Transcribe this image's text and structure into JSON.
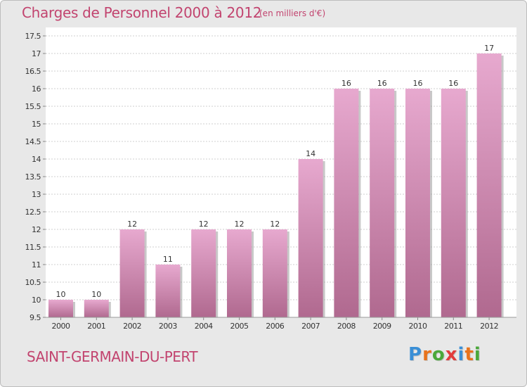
{
  "page": {
    "title": "Charges de Personnel 2000 à 2012",
    "subtitle": "(en milliers d'€)",
    "place": "SAINT-GERMAIN-DU-PERT",
    "brand": "Proxiti",
    "brand_letter_colors": [
      "#3a8fd6",
      "#e8731c",
      "#4aa83a",
      "#e23c3c",
      "#3a8fd6",
      "#e8731c",
      "#4aa83a"
    ]
  },
  "colors": {
    "bar_top": "#e7a9cf",
    "bar_bottom": "#b0698f",
    "bar_shadow": "#9a9a9a",
    "text": "#c2446f",
    "axis_text": "#333333",
    "grid": "#cfcfcf"
  },
  "chart_data": {
    "type": "bar",
    "title": "Charges de Personnel 2000 à 2012",
    "subtitle": "(en milliers d'€)",
    "categories": [
      "2000",
      "2001",
      "2002",
      "2003",
      "2004",
      "2005",
      "2006",
      "2007",
      "2008",
      "2009",
      "2010",
      "2011",
      "2012"
    ],
    "values": [
      10,
      10,
      12,
      11,
      12,
      12,
      12,
      14,
      16,
      16,
      16,
      16,
      17
    ],
    "data_labels": [
      "10",
      "10",
      "12",
      "11",
      "12",
      "12",
      "12",
      "14",
      "16",
      "16",
      "16",
      "16",
      "17"
    ],
    "yticks": [
      "9.5",
      "10",
      "10.5",
      "11",
      "11.5",
      "12",
      "12.5",
      "13",
      "13.5",
      "14",
      "14.5",
      "15",
      "15.5",
      "16",
      "16.5",
      "17",
      "17.5"
    ],
    "ylim": [
      9.5,
      17.5
    ],
    "xlabel": "",
    "ylabel": "",
    "grid": true,
    "legend": "none"
  }
}
